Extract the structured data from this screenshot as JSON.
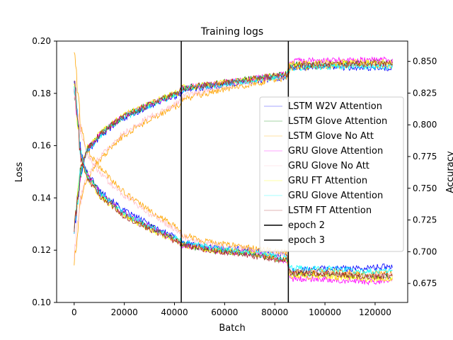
{
  "chart_data": {
    "type": "line",
    "title": "Training logs",
    "xlabel": "Batch",
    "ylabel": "Loss",
    "y2label": "Accuracy",
    "xlim": [
      -7000,
      133000
    ],
    "ylim": [
      0.1,
      0.2
    ],
    "y2lim": [
      0.66,
      0.866
    ],
    "x_ticks": [
      "0",
      "20000",
      "40000",
      "60000",
      "80000",
      "100000",
      "120000"
    ],
    "x_tick_values": [
      0,
      20000,
      40000,
      60000,
      80000,
      100000,
      120000
    ],
    "y_ticks": [
      "0.10",
      "0.12",
      "0.14",
      "0.16",
      "0.18",
      "0.20"
    ],
    "y_tick_values": [
      0.1,
      0.12,
      0.14,
      0.16,
      0.18,
      0.2
    ],
    "y2_ticks": [
      "0.675",
      "0.700",
      "0.725",
      "0.750",
      "0.775",
      "0.800",
      "0.825",
      "0.850"
    ],
    "y2_tick_values": [
      0.675,
      0.7,
      0.725,
      0.75,
      0.775,
      0.8,
      0.825,
      0.85
    ],
    "vlines": [
      {
        "name": "epoch 2",
        "x": 42700,
        "color": "#000000"
      },
      {
        "name": "epoch 3",
        "x": 85400,
        "color": "#000000"
      }
    ],
    "legend_position": "center-right",
    "grid": false,
    "x": [
      0,
      2500,
      5000,
      10000,
      15000,
      20000,
      30000,
      42000,
      43000,
      55000,
      70000,
      85000,
      86000,
      100000,
      115000,
      127000
    ],
    "series": [
      {
        "name": "LSTM W2V Attention",
        "color": "#0000ff",
        "loss": [
          0.186,
          0.158,
          0.15,
          0.143,
          0.139,
          0.135,
          0.13,
          0.124,
          0.123,
          0.121,
          0.12,
          0.118,
          0.112,
          0.113,
          0.113,
          0.114
        ],
        "accuracy": [
          0.715,
          0.76,
          0.778,
          0.79,
          0.798,
          0.805,
          0.815,
          0.824,
          0.827,
          0.83,
          0.834,
          0.838,
          0.845,
          0.846,
          0.845,
          0.845
        ]
      },
      {
        "name": "LSTM Glove Attention",
        "color": "#008000",
        "loss": [
          0.183,
          0.157,
          0.149,
          0.142,
          0.138,
          0.134,
          0.129,
          0.123,
          0.122,
          0.12,
          0.119,
          0.116,
          0.111,
          0.111,
          0.11,
          0.11
        ],
        "accuracy": [
          0.716,
          0.762,
          0.78,
          0.792,
          0.8,
          0.807,
          0.816,
          0.826,
          0.829,
          0.832,
          0.836,
          0.84,
          0.847,
          0.848,
          0.849,
          0.849
        ]
      },
      {
        "name": "LSTM Glove No Att",
        "color": "#ffa500",
        "loss": [
          0.197,
          0.168,
          0.158,
          0.152,
          0.147,
          0.142,
          0.135,
          0.128,
          0.126,
          0.123,
          0.121,
          0.119,
          0.112,
          0.112,
          0.111,
          0.111
        ],
        "accuracy": [
          0.69,
          0.74,
          0.758,
          0.772,
          0.783,
          0.792,
          0.804,
          0.816,
          0.82,
          0.826,
          0.832,
          0.837,
          0.845,
          0.846,
          0.847,
          0.847
        ]
      },
      {
        "name": "GRU Glove Attention",
        "color": "#ff00ff",
        "loss": [
          0.183,
          0.157,
          0.149,
          0.142,
          0.138,
          0.134,
          0.129,
          0.123,
          0.122,
          0.12,
          0.119,
          0.116,
          0.109,
          0.109,
          0.108,
          0.108
        ],
        "accuracy": [
          0.716,
          0.762,
          0.78,
          0.792,
          0.8,
          0.807,
          0.816,
          0.826,
          0.829,
          0.832,
          0.836,
          0.84,
          0.85,
          0.851,
          0.851,
          0.851
        ]
      },
      {
        "name": "GRU Glove No Att",
        "color": "#ffc0cb",
        "loss": [
          0.179,
          0.166,
          0.157,
          0.15,
          0.145,
          0.141,
          0.134,
          0.127,
          0.125,
          0.122,
          0.12,
          0.118,
          0.111,
          0.111,
          0.11,
          0.11
        ],
        "accuracy": [
          0.695,
          0.742,
          0.76,
          0.774,
          0.785,
          0.794,
          0.806,
          0.818,
          0.822,
          0.828,
          0.834,
          0.839,
          0.847,
          0.848,
          0.848,
          0.848
        ]
      },
      {
        "name": "GRU FT Attention",
        "color": "#ffff00",
        "loss": [
          0.185,
          0.156,
          0.148,
          0.141,
          0.137,
          0.133,
          0.128,
          0.123,
          0.122,
          0.12,
          0.119,
          0.116,
          0.11,
          0.11,
          0.109,
          0.109
        ],
        "accuracy": [
          0.717,
          0.763,
          0.781,
          0.793,
          0.801,
          0.808,
          0.817,
          0.826,
          0.829,
          0.832,
          0.836,
          0.84,
          0.848,
          0.849,
          0.849,
          0.849
        ]
      },
      {
        "name": "GRU Glove Attention",
        "color": "#00ffff",
        "loss": [
          0.184,
          0.157,
          0.149,
          0.142,
          0.138,
          0.134,
          0.129,
          0.124,
          0.123,
          0.121,
          0.119,
          0.117,
          0.113,
          0.113,
          0.112,
          0.112
        ],
        "accuracy": [
          0.715,
          0.761,
          0.779,
          0.791,
          0.799,
          0.806,
          0.815,
          0.825,
          0.828,
          0.831,
          0.835,
          0.839,
          0.845,
          0.846,
          0.846,
          0.846
        ]
      },
      {
        "name": "LSTM FT Attention",
        "color": "#a52a2a",
        "loss": [
          0.186,
          0.156,
          0.148,
          0.141,
          0.137,
          0.133,
          0.128,
          0.123,
          0.122,
          0.12,
          0.118,
          0.116,
          0.111,
          0.111,
          0.11,
          0.11
        ],
        "accuracy": [
          0.716,
          0.762,
          0.78,
          0.792,
          0.8,
          0.807,
          0.816,
          0.826,
          0.829,
          0.832,
          0.836,
          0.84,
          0.847,
          0.848,
          0.848,
          0.848
        ]
      }
    ]
  }
}
